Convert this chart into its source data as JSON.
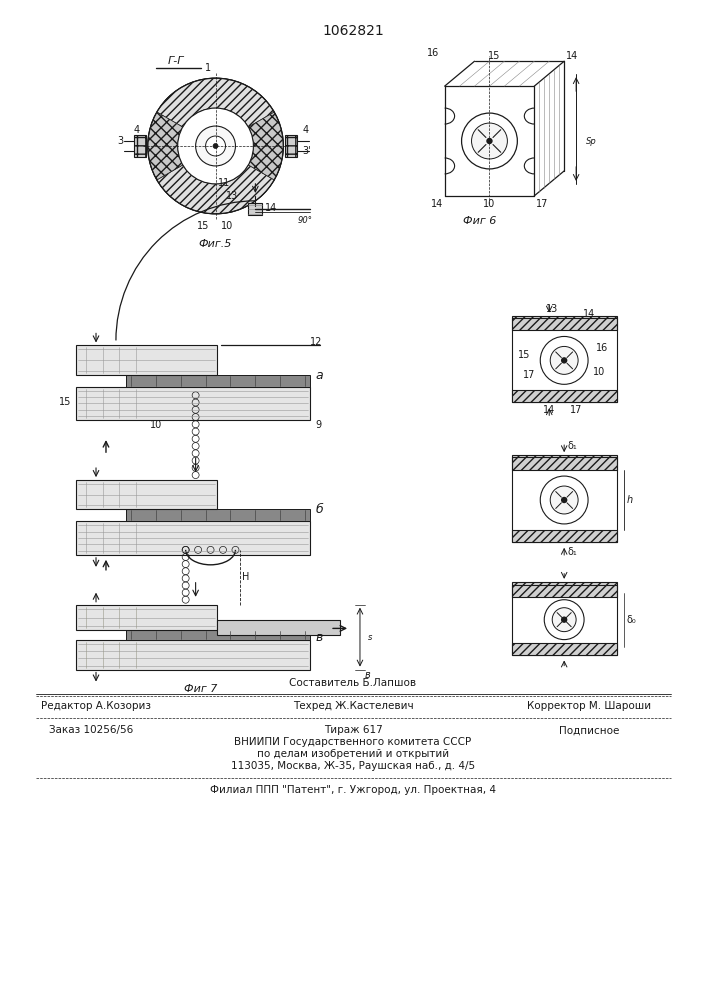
{
  "patent_number": "1062821",
  "title_label": "Г-Г",
  "fig5_label": "Фиг.5",
  "fig6_label": "Фиг 6",
  "fig7_label": "Фиг 7",
  "footer_above_center": "Составитель Б.Лапшов",
  "footer_line1_left": "Редактор А.Козориз",
  "footer_line1_center": "Техред Ж.Кастелевич",
  "footer_line1_right": "Корректор М. Шароши",
  "footer_line2a": "Заказ 10256/56",
  "footer_line2b": "Тираж 617",
  "footer_line2c": "Подписное",
  "footer_line3": "ВНИИПИ Государственного комитета СССР",
  "footer_line4": "по делам изобретений и открытий",
  "footer_line5": "113035, Москва, Ж-35, Раушская наб., д. 4/5",
  "footer_line6": "Филиал ППП \"Патент\", г. Ужгород, ул. Проектная, 4",
  "bg_color": "#ffffff",
  "line_color": "#1a1a1a"
}
